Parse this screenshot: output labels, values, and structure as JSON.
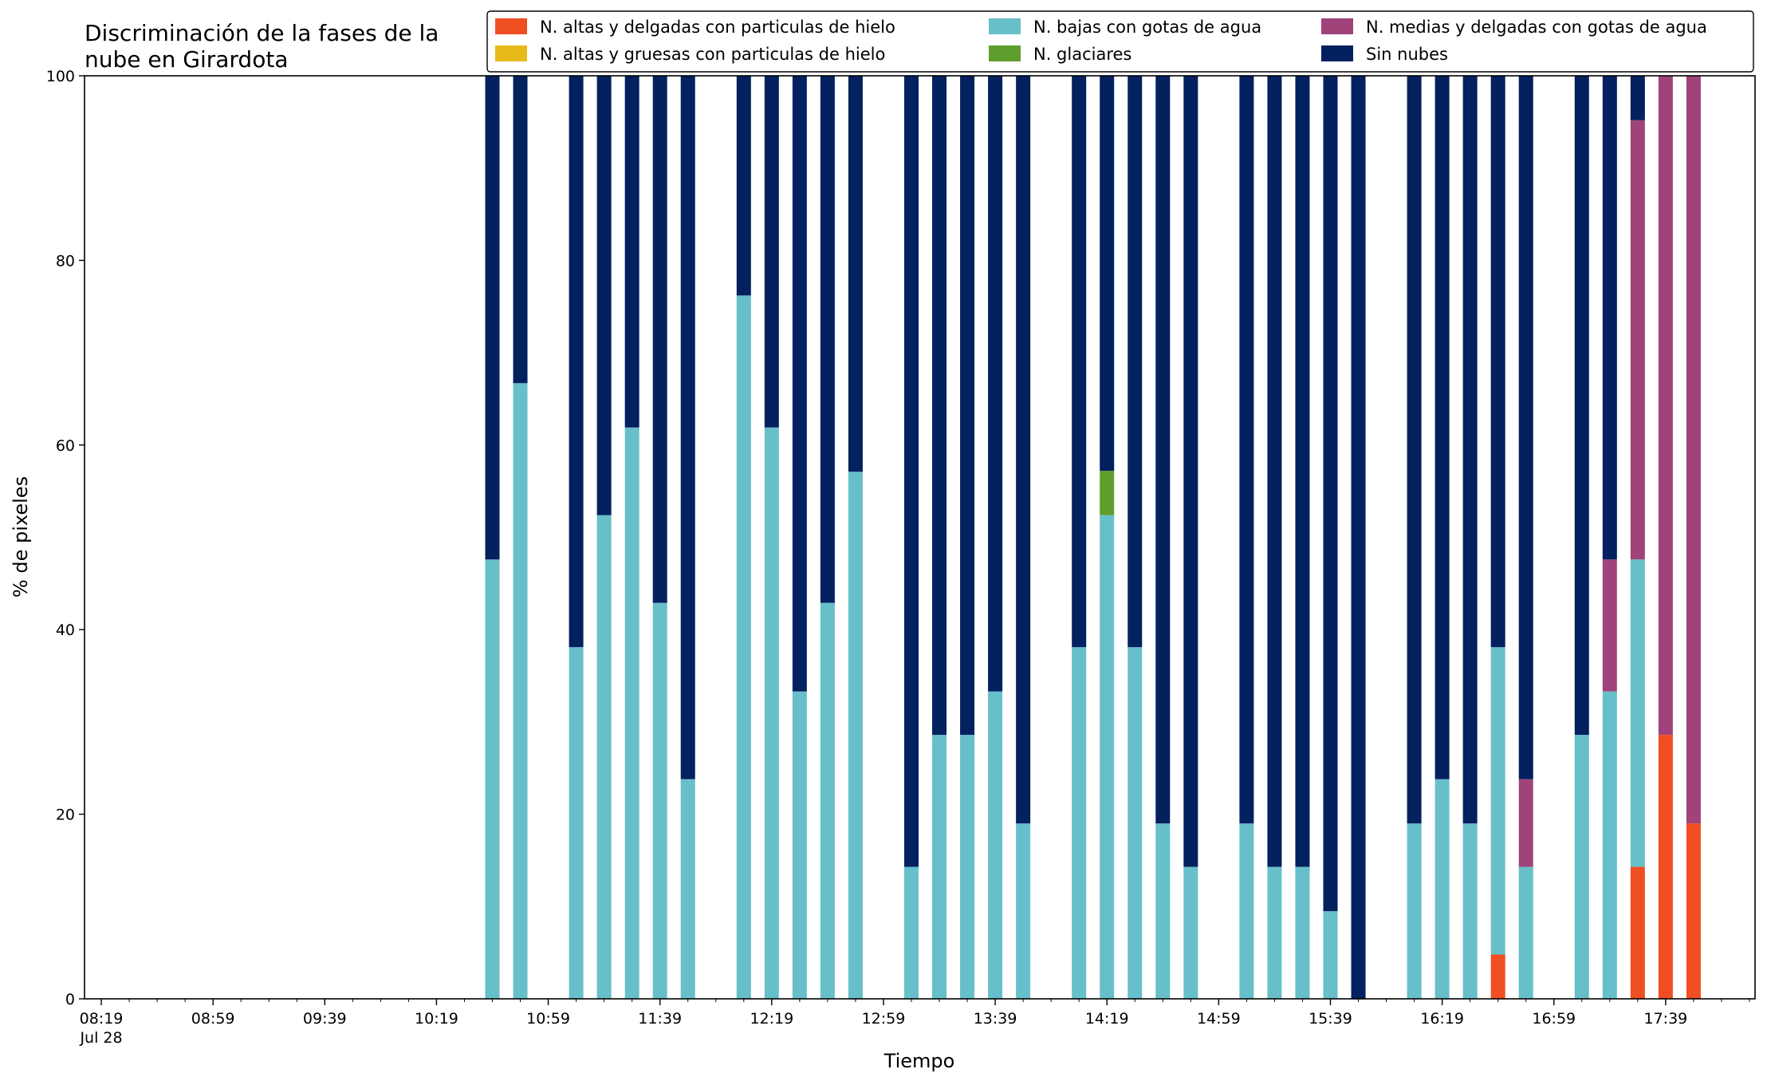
{
  "chart_data": {
    "type": "bar",
    "stacked": true,
    "title": "Discriminación de la fases de la nube en Girardota",
    "title_lines": [
      "Discriminación de la fases de la",
      "nube en Girardota"
    ],
    "xlabel": "Tiempo",
    "ylabel": "% de pixeles",
    "ylim": [
      0,
      100
    ],
    "yticks": [
      "0",
      "20",
      "40",
      "60",
      "80",
      "100"
    ],
    "xlim": [
      "08:13",
      "18:11"
    ],
    "xtick_labels": [
      {
        "time": "08:19",
        "label": "08:19",
        "sublabel": "Jul 28"
      },
      {
        "time": "08:59",
        "label": "08:59"
      },
      {
        "time": "09:39",
        "label": "09:39"
      },
      {
        "time": "10:19",
        "label": "10:19"
      },
      {
        "time": "10:59",
        "label": "10:59"
      },
      {
        "time": "11:39",
        "label": "11:39"
      },
      {
        "time": "12:19",
        "label": "12:19"
      },
      {
        "time": "12:59",
        "label": "12:59"
      },
      {
        "time": "13:39",
        "label": "13:39"
      },
      {
        "time": "14:19",
        "label": "14:19"
      },
      {
        "time": "14:59",
        "label": "14:59"
      },
      {
        "time": "15:39",
        "label": "15:39"
      },
      {
        "time": "16:19",
        "label": "16:19"
      },
      {
        "time": "16:59",
        "label": "16:59"
      },
      {
        "time": "17:39",
        "label": "17:39"
      }
    ],
    "minor_tick_interval_minutes": 10,
    "legend_position": "top-right",
    "grid": false,
    "series": [
      {
        "key": "altas_delgadas_hielo",
        "name": "N. altas y delgadas con particulas de hielo",
        "color": "#f04e23"
      },
      {
        "key": "altas_gruesas_hielo",
        "name": "N. altas y gruesas con particulas de hielo",
        "color": "#e8b91a"
      },
      {
        "key": "bajas_agua",
        "name": "N. bajas con gotas de agua",
        "color": "#67bfca"
      },
      {
        "key": "glaciares",
        "name": "N. glaciares",
        "color": "#5f9e2c"
      },
      {
        "key": "medias_delgadas_agua",
        "name": "N. medias y delgadas con gotas de agua",
        "color": "#a0437a"
      },
      {
        "key": "sin_nubes",
        "name": "Sin nubes",
        "color": "#03205f"
      }
    ],
    "legend_order": [
      "altas_delgadas_hielo",
      "bajas_agua",
      "medias_delgadas_agua",
      "altas_gruesas_hielo",
      "glaciares",
      "sin_nubes"
    ],
    "bars": [
      {
        "time": "10:39",
        "altas_delgadas_hielo": 0,
        "altas_gruesas_hielo": 0,
        "bajas_agua": 47.6,
        "glaciares": 0,
        "medias_delgadas_agua": 0,
        "sin_nubes": 52.4
      },
      {
        "time": "10:49",
        "altas_delgadas_hielo": 0,
        "altas_gruesas_hielo": 0,
        "bajas_agua": 66.7,
        "glaciares": 0,
        "medias_delgadas_agua": 0,
        "sin_nubes": 33.3
      },
      {
        "time": "11:09",
        "altas_delgadas_hielo": 0,
        "altas_gruesas_hielo": 0,
        "bajas_agua": 38.1,
        "glaciares": 0,
        "medias_delgadas_agua": 0,
        "sin_nubes": 61.9
      },
      {
        "time": "11:19",
        "altas_delgadas_hielo": 0,
        "altas_gruesas_hielo": 0,
        "bajas_agua": 52.4,
        "glaciares": 0,
        "medias_delgadas_agua": 0,
        "sin_nubes": 47.6
      },
      {
        "time": "11:29",
        "altas_delgadas_hielo": 0,
        "altas_gruesas_hielo": 0,
        "bajas_agua": 61.9,
        "glaciares": 0,
        "medias_delgadas_agua": 0,
        "sin_nubes": 38.1
      },
      {
        "time": "11:39",
        "altas_delgadas_hielo": 0,
        "altas_gruesas_hielo": 0,
        "bajas_agua": 42.9,
        "glaciares": 0,
        "medias_delgadas_agua": 0,
        "sin_nubes": 57.1
      },
      {
        "time": "11:49",
        "altas_delgadas_hielo": 0,
        "altas_gruesas_hielo": 0,
        "bajas_agua": 23.8,
        "glaciares": 0,
        "medias_delgadas_agua": 0,
        "sin_nubes": 76.2
      },
      {
        "time": "12:09",
        "altas_delgadas_hielo": 0,
        "altas_gruesas_hielo": 0,
        "bajas_agua": 76.2,
        "glaciares": 0,
        "medias_delgadas_agua": 0,
        "sin_nubes": 23.8
      },
      {
        "time": "12:19",
        "altas_delgadas_hielo": 0,
        "altas_gruesas_hielo": 0,
        "bajas_agua": 61.9,
        "glaciares": 0,
        "medias_delgadas_agua": 0,
        "sin_nubes": 38.1
      },
      {
        "time": "12:29",
        "altas_delgadas_hielo": 0,
        "altas_gruesas_hielo": 0,
        "bajas_agua": 33.3,
        "glaciares": 0,
        "medias_delgadas_agua": 0,
        "sin_nubes": 66.7
      },
      {
        "time": "12:39",
        "altas_delgadas_hielo": 0,
        "altas_gruesas_hielo": 0,
        "bajas_agua": 42.9,
        "glaciares": 0,
        "medias_delgadas_agua": 0,
        "sin_nubes": 57.1
      },
      {
        "time": "12:49",
        "altas_delgadas_hielo": 0,
        "altas_gruesas_hielo": 0,
        "bajas_agua": 57.1,
        "glaciares": 0,
        "medias_delgadas_agua": 0,
        "sin_nubes": 42.9
      },
      {
        "time": "13:09",
        "altas_delgadas_hielo": 0,
        "altas_gruesas_hielo": 0,
        "bajas_agua": 14.3,
        "glaciares": 0,
        "medias_delgadas_agua": 0,
        "sin_nubes": 85.7
      },
      {
        "time": "13:19",
        "altas_delgadas_hielo": 0,
        "altas_gruesas_hielo": 0,
        "bajas_agua": 28.6,
        "glaciares": 0,
        "medias_delgadas_agua": 0,
        "sin_nubes": 71.4
      },
      {
        "time": "13:29",
        "altas_delgadas_hielo": 0,
        "altas_gruesas_hielo": 0,
        "bajas_agua": 28.6,
        "glaciares": 0,
        "medias_delgadas_agua": 0,
        "sin_nubes": 71.4
      },
      {
        "time": "13:39",
        "altas_delgadas_hielo": 0,
        "altas_gruesas_hielo": 0,
        "bajas_agua": 33.3,
        "glaciares": 0,
        "medias_delgadas_agua": 0,
        "sin_nubes": 66.7
      },
      {
        "time": "13:49",
        "altas_delgadas_hielo": 0,
        "altas_gruesas_hielo": 0,
        "bajas_agua": 19.0,
        "glaciares": 0,
        "medias_delgadas_agua": 0,
        "sin_nubes": 81.0
      },
      {
        "time": "14:09",
        "altas_delgadas_hielo": 0,
        "altas_gruesas_hielo": 0,
        "bajas_agua": 38.1,
        "glaciares": 0,
        "medias_delgadas_agua": 0,
        "sin_nubes": 61.9
      },
      {
        "time": "14:19",
        "altas_delgadas_hielo": 0,
        "altas_gruesas_hielo": 0,
        "bajas_agua": 52.4,
        "glaciares": 4.8,
        "medias_delgadas_agua": 0,
        "sin_nubes": 42.8
      },
      {
        "time": "14:29",
        "altas_delgadas_hielo": 0,
        "altas_gruesas_hielo": 0,
        "bajas_agua": 38.1,
        "glaciares": 0,
        "medias_delgadas_agua": 0,
        "sin_nubes": 61.9
      },
      {
        "time": "14:39",
        "altas_delgadas_hielo": 0,
        "altas_gruesas_hielo": 0,
        "bajas_agua": 19.0,
        "glaciares": 0,
        "medias_delgadas_agua": 0,
        "sin_nubes": 81.0
      },
      {
        "time": "14:49",
        "altas_delgadas_hielo": 0,
        "altas_gruesas_hielo": 0,
        "bajas_agua": 14.3,
        "glaciares": 0,
        "medias_delgadas_agua": 0,
        "sin_nubes": 85.7
      },
      {
        "time": "15:09",
        "altas_delgadas_hielo": 0,
        "altas_gruesas_hielo": 0,
        "bajas_agua": 19.0,
        "glaciares": 0,
        "medias_delgadas_agua": 0,
        "sin_nubes": 81.0
      },
      {
        "time": "15:19",
        "altas_delgadas_hielo": 0,
        "altas_gruesas_hielo": 0,
        "bajas_agua": 14.3,
        "glaciares": 0,
        "medias_delgadas_agua": 0,
        "sin_nubes": 85.7
      },
      {
        "time": "15:29",
        "altas_delgadas_hielo": 0,
        "altas_gruesas_hielo": 0,
        "bajas_agua": 14.3,
        "glaciares": 0,
        "medias_delgadas_agua": 0,
        "sin_nubes": 85.7
      },
      {
        "time": "15:39",
        "altas_delgadas_hielo": 0,
        "altas_gruesas_hielo": 0,
        "bajas_agua": 9.5,
        "glaciares": 0,
        "medias_delgadas_agua": 0,
        "sin_nubes": 90.5
      },
      {
        "time": "15:49",
        "altas_delgadas_hielo": 0,
        "altas_gruesas_hielo": 0,
        "bajas_agua": 0,
        "glaciares": 0,
        "medias_delgadas_agua": 0,
        "sin_nubes": 100
      },
      {
        "time": "16:09",
        "altas_delgadas_hielo": 0,
        "altas_gruesas_hielo": 0,
        "bajas_agua": 19.0,
        "glaciares": 0,
        "medias_delgadas_agua": 0,
        "sin_nubes": 81.0
      },
      {
        "time": "16:19",
        "altas_delgadas_hielo": 0,
        "altas_gruesas_hielo": 0,
        "bajas_agua": 23.8,
        "glaciares": 0,
        "medias_delgadas_agua": 0,
        "sin_nubes": 76.2
      },
      {
        "time": "16:29",
        "altas_delgadas_hielo": 0,
        "altas_gruesas_hielo": 0,
        "bajas_agua": 19.0,
        "glaciares": 0,
        "medias_delgadas_agua": 0,
        "sin_nubes": 81.0
      },
      {
        "time": "16:39",
        "altas_delgadas_hielo": 4.8,
        "altas_gruesas_hielo": 0,
        "bajas_agua": 33.3,
        "glaciares": 0,
        "medias_delgadas_agua": 0,
        "sin_nubes": 61.9
      },
      {
        "time": "16:49",
        "altas_delgadas_hielo": 0,
        "altas_gruesas_hielo": 0,
        "bajas_agua": 14.3,
        "glaciares": 0,
        "medias_delgadas_agua": 9.5,
        "sin_nubes": 76.2
      },
      {
        "time": "17:09",
        "altas_delgadas_hielo": 0,
        "altas_gruesas_hielo": 0,
        "bajas_agua": 28.6,
        "glaciares": 0,
        "medias_delgadas_agua": 0,
        "sin_nubes": 71.4
      },
      {
        "time": "17:19",
        "altas_delgadas_hielo": 0,
        "altas_gruesas_hielo": 0,
        "bajas_agua": 33.3,
        "glaciares": 0,
        "medias_delgadas_agua": 14.3,
        "sin_nubes": 52.4
      },
      {
        "time": "17:29",
        "altas_delgadas_hielo": 14.3,
        "altas_gruesas_hielo": 0,
        "bajas_agua": 33.3,
        "glaciares": 0,
        "medias_delgadas_agua": 47.6,
        "sin_nubes": 4.8
      },
      {
        "time": "17:39",
        "altas_delgadas_hielo": 28.6,
        "altas_gruesas_hielo": 0,
        "bajas_agua": 0,
        "glaciares": 0,
        "medias_delgadas_agua": 71.4,
        "sin_nubes": 0
      },
      {
        "time": "17:49",
        "altas_delgadas_hielo": 19.0,
        "altas_gruesas_hielo": 0,
        "bajas_agua": 0,
        "glaciares": 0,
        "medias_delgadas_agua": 81.0,
        "sin_nubes": 0
      }
    ]
  }
}
